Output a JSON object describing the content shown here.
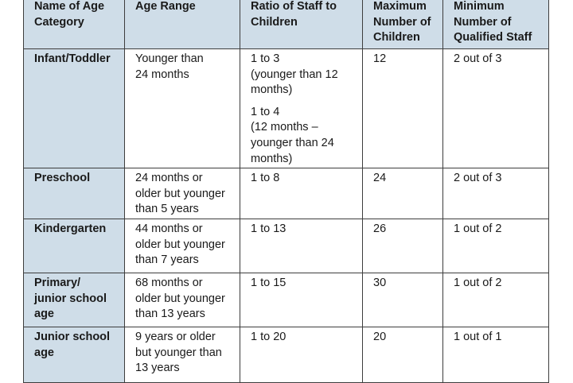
{
  "headers": [
    [
      "Name of Age",
      "Category"
    ],
    [
      "Age Range"
    ],
    [
      "Ratio of Staff to",
      "Children"
    ],
    [
      "Maximum",
      "Number of",
      "Children"
    ],
    [
      "Minimum",
      "Number of",
      "Qualified Staff"
    ]
  ],
  "rows": [
    {
      "category": [
        "Infant/Toddler"
      ],
      "age_range": [
        "Younger than",
        "24 months"
      ],
      "ratio_a": [
        "1 to 3",
        "(younger than 12",
        "months)"
      ],
      "ratio_b": [
        "1 to 4",
        "(12 months –",
        "younger than 24",
        "months)"
      ],
      "max_children": "12",
      "min_staff": "2 out of 3"
    },
    {
      "category": [
        "Preschool"
      ],
      "age_range": [
        "24 months or",
        "older but younger",
        "than 5 years"
      ],
      "ratio_a": [
        "1 to 8"
      ],
      "max_children": "24",
      "min_staff": "2 out of 3"
    },
    {
      "category": [
        "Kindergarten"
      ],
      "age_range": [
        "44 months or",
        "older but younger",
        "than 7 years"
      ],
      "ratio_a": [
        "1 to 13"
      ],
      "max_children": "26",
      "min_staff": "1 out of 2"
    },
    {
      "category": [
        "Primary/",
        "junior school",
        "age"
      ],
      "age_range": [
        "68 months or",
        "older but younger",
        "than 13 years"
      ],
      "ratio_a": [
        "1 to 15"
      ],
      "max_children": "30",
      "min_staff": "1 out of 2"
    },
    {
      "category": [
        "Junior school",
        "age"
      ],
      "age_range": [
        "9 years or older",
        "but younger than",
        "13 years"
      ],
      "ratio_a": [
        "1 to 20"
      ],
      "max_children": "20",
      "min_staff": "1 out of 1"
    }
  ]
}
